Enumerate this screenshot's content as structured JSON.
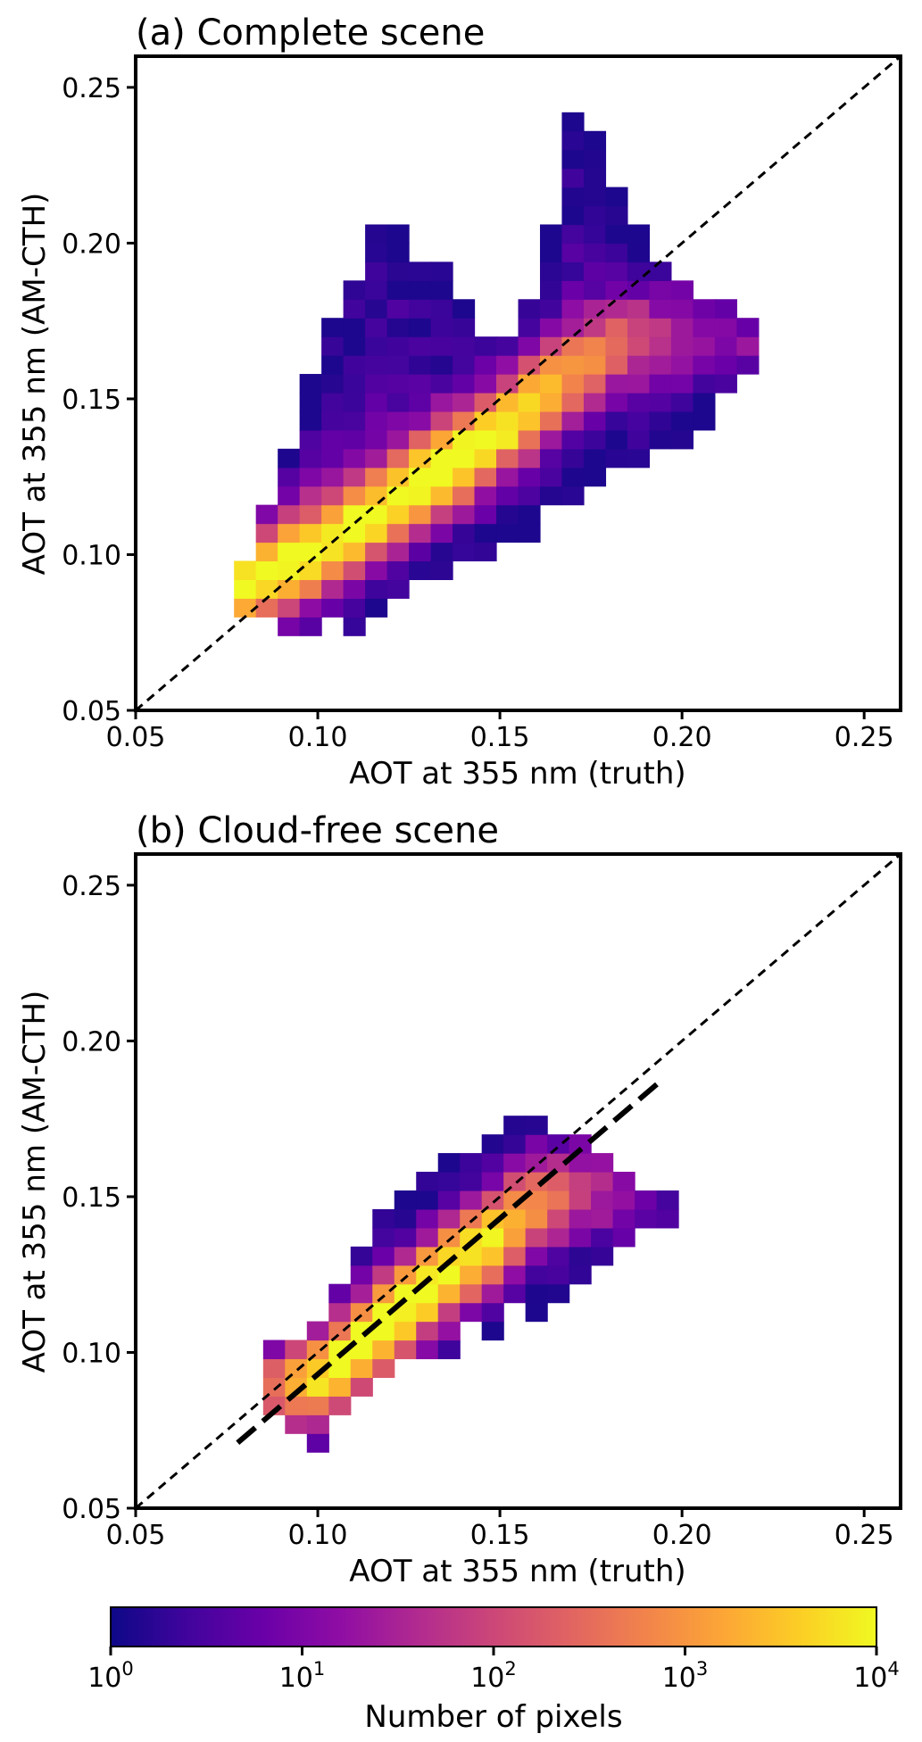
{
  "chart_data": [
    {
      "type": "heatmap",
      "title": "(a) Complete scene",
      "xlabel": "AOT at 355 nm (truth)",
      "ylabel": "AOT at 355 nm (AM-CTH)",
      "xlim": [
        0.05,
        0.26
      ],
      "ylim": [
        0.05,
        0.26
      ],
      "xticks": [
        "0.05",
        "0.10",
        "0.15",
        "0.20",
        "0.25"
      ],
      "yticks": [
        "0.05",
        "0.10",
        "0.15",
        "0.20",
        "0.25"
      ],
      "bin_width": 0.006,
      "reference_lines": [
        {
          "style": "dashed",
          "from": [
            0.05,
            0.05
          ],
          "to": [
            0.26,
            0.26
          ]
        }
      ],
      "density_ridge": [
        {
          "x": 0.08,
          "y": 0.09,
          "w": 1.0
        },
        {
          "x": 0.095,
          "y": 0.098,
          "w": 1.0
        },
        {
          "x": 0.11,
          "y": 0.108,
          "w": 1.0
        },
        {
          "x": 0.125,
          "y": 0.12,
          "w": 1.0
        },
        {
          "x": 0.14,
          "y": 0.132,
          "w": 1.0
        },
        {
          "x": 0.155,
          "y": 0.145,
          "w": 0.9
        },
        {
          "x": 0.17,
          "y": 0.158,
          "w": 0.7
        },
        {
          "x": 0.185,
          "y": 0.168,
          "w": 0.45
        },
        {
          "x": 0.2,
          "y": 0.172,
          "w": 0.3
        },
        {
          "x": 0.215,
          "y": 0.172,
          "w": 0.15
        }
      ],
      "extent": {
        "x_min": 0.077,
        "x_max": 0.22,
        "lower_edge": [
          [
            0.077,
            0.082
          ],
          [
            0.1,
            0.07
          ],
          [
            0.13,
            0.088
          ],
          [
            0.16,
            0.105
          ],
          [
            0.18,
            0.125
          ],
          [
            0.2,
            0.135
          ],
          [
            0.22,
            0.16
          ]
        ],
        "upper_edge": [
          [
            0.077,
            0.092
          ],
          [
            0.09,
            0.13
          ],
          [
            0.1,
            0.165
          ],
          [
            0.11,
            0.195
          ],
          [
            0.12,
            0.215
          ],
          [
            0.13,
            0.2
          ],
          [
            0.14,
            0.18
          ],
          [
            0.15,
            0.168
          ],
          [
            0.16,
            0.19
          ],
          [
            0.17,
            0.24
          ],
          [
            0.18,
            0.23
          ],
          [
            0.19,
            0.2
          ],
          [
            0.2,
            0.19
          ],
          [
            0.22,
            0.175
          ]
        ]
      }
    },
    {
      "type": "heatmap",
      "title": "(b) Cloud-free scene",
      "xlabel": "AOT at 355 nm (truth)",
      "ylabel": "AOT at 355 nm (AM-CTH)",
      "xlim": [
        0.05,
        0.26
      ],
      "ylim": [
        0.05,
        0.26
      ],
      "xticks": [
        "0.05",
        "0.10",
        "0.15",
        "0.20",
        "0.25"
      ],
      "yticks": [
        "0.05",
        "0.10",
        "0.15",
        "0.20",
        "0.25"
      ],
      "bin_width": 0.006,
      "reference_lines": [
        {
          "style": "dashed",
          "from": [
            0.05,
            0.05
          ],
          "to": [
            0.26,
            0.26
          ]
        },
        {
          "style": "thick-dashed",
          "from": [
            0.078,
            0.071
          ],
          "to": [
            0.195,
            0.188
          ]
        }
      ],
      "density_ridge": [
        {
          "x": 0.09,
          "y": 0.088,
          "w": 0.6
        },
        {
          "x": 0.105,
          "y": 0.095,
          "w": 1.0
        },
        {
          "x": 0.12,
          "y": 0.11,
          "w": 1.0
        },
        {
          "x": 0.135,
          "y": 0.125,
          "w": 0.95
        },
        {
          "x": 0.15,
          "y": 0.138,
          "w": 0.85
        },
        {
          "x": 0.16,
          "y": 0.148,
          "w": 0.65
        },
        {
          "x": 0.175,
          "y": 0.155,
          "w": 0.35
        },
        {
          "x": 0.19,
          "y": 0.15,
          "w": 0.12
        }
      ],
      "extent": {
        "x_min": 0.085,
        "x_max": 0.195,
        "lower_edge": [
          [
            0.085,
            0.085
          ],
          [
            0.1,
            0.07
          ],
          [
            0.12,
            0.093
          ],
          [
            0.14,
            0.103
          ],
          [
            0.16,
            0.113
          ],
          [
            0.18,
            0.128
          ],
          [
            0.195,
            0.14
          ]
        ],
        "upper_edge": [
          [
            0.085,
            0.1
          ],
          [
            0.1,
            0.112
          ],
          [
            0.11,
            0.132
          ],
          [
            0.12,
            0.148
          ],
          [
            0.13,
            0.158
          ],
          [
            0.14,
            0.168
          ],
          [
            0.15,
            0.172
          ],
          [
            0.16,
            0.175
          ],
          [
            0.17,
            0.17
          ],
          [
            0.18,
            0.162
          ],
          [
            0.195,
            0.15
          ]
        ]
      }
    }
  ],
  "colorbar": {
    "label": "Number of pixels",
    "scale": "log",
    "range": [
      1,
      10000
    ],
    "tick_bases": [
      "10",
      "10",
      "10",
      "10",
      "10"
    ],
    "tick_exponents": [
      "0",
      "1",
      "2",
      "3",
      "4"
    ],
    "colors": [
      "#0d0887",
      "#41049d",
      "#6a00a8",
      "#8f0da4",
      "#b12a90",
      "#cc4778",
      "#e16462",
      "#f2844b",
      "#fca636",
      "#fcce25",
      "#f0f921"
    ]
  }
}
